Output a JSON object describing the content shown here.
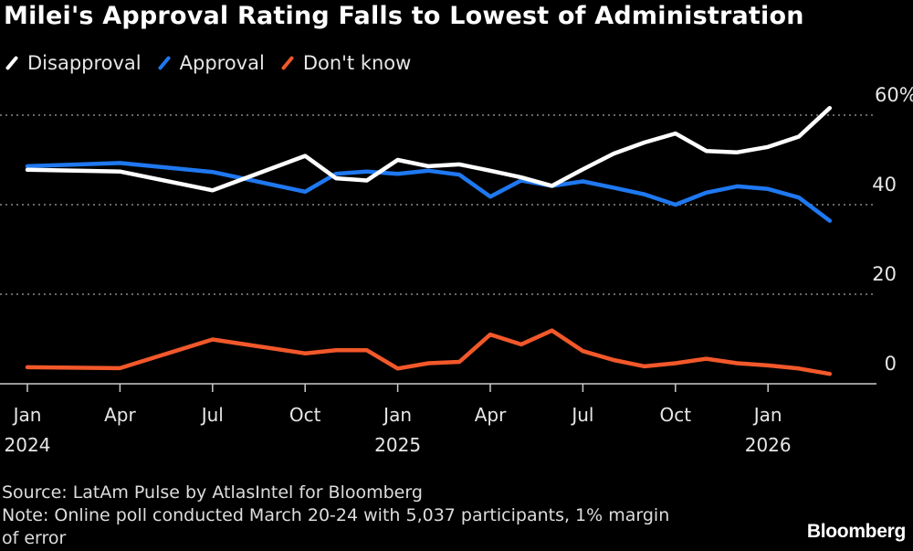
{
  "chart_data": {
    "type": "line",
    "title": "Milei's Approval Rating Falls to Lowest of Administration",
    "x": [
      "2024-01",
      "2024-04",
      "2024-07",
      "2024-10",
      "2024-11",
      "2024-12",
      "2025-01",
      "2025-02",
      "2025-03",
      "2025-04",
      "2025-05",
      "2025-06",
      "2025-07",
      "2025-08",
      "2025-09",
      "2025-10",
      "2025-11",
      "2025-12",
      "2026-01",
      "2026-02",
      "2026-03"
    ],
    "series": [
      {
        "name": "Disapproval",
        "color": "#ffffff",
        "values": [
          47.8,
          47.4,
          43.2,
          50.9,
          45.9,
          45.4,
          50.0,
          48.6,
          49.0,
          47.6,
          46.1,
          44.2,
          47.9,
          51.4,
          53.9,
          55.9,
          52.0,
          51.7,
          52.9,
          55.2,
          61.6
        ]
      },
      {
        "name": "Approval",
        "color": "#1f78f0",
        "values": [
          48.6,
          49.3,
          47.3,
          42.9,
          46.9,
          47.4,
          46.9,
          47.6,
          46.7,
          41.8,
          45.4,
          44.2,
          45.2,
          43.8,
          42.3,
          40.0,
          42.7,
          44.1,
          43.5,
          41.6,
          36.4
        ]
      },
      {
        "name": "Don't know",
        "color": "#f2582a",
        "values": [
          3.7,
          3.5,
          9.9,
          6.8,
          7.5,
          7.5,
          3.4,
          4.6,
          4.9,
          11.0,
          8.8,
          11.9,
          7.3,
          5.3,
          3.9,
          4.6,
          5.6,
          4.6,
          4.1,
          3.4,
          2.2
        ]
      }
    ],
    "ylim": [
      0,
      60
    ],
    "yticks": [
      {
        "value": 60,
        "label": "60%"
      },
      {
        "value": 40,
        "label": "40"
      },
      {
        "value": 20,
        "label": "20"
      },
      {
        "value": 0,
        "label": "0"
      }
    ],
    "xticks": [
      {
        "date": "2024-01",
        "label": "Jan",
        "year": "2024"
      },
      {
        "date": "2024-04",
        "label": "Apr",
        "year": ""
      },
      {
        "date": "2024-07",
        "label": "Jul",
        "year": ""
      },
      {
        "date": "2024-10",
        "label": "Oct",
        "year": ""
      },
      {
        "date": "2025-01",
        "label": "Jan",
        "year": "2025"
      },
      {
        "date": "2025-04",
        "label": "Apr",
        "year": ""
      },
      {
        "date": "2025-07",
        "label": "Jul",
        "year": ""
      },
      {
        "date": "2025-10",
        "label": "Oct",
        "year": ""
      },
      {
        "date": "2026-01",
        "label": "Jan",
        "year": "2026"
      }
    ],
    "grid": true,
    "legend_placement": "top-left"
  },
  "footer": {
    "source": "Source: LatAm Pulse by AtlasIntel for Bloomberg",
    "note_line1": "Note: Online poll conducted March 20-24 with 5,037 participants, 1% margin",
    "note_line2": "of error",
    "logo": "Bloomberg"
  }
}
